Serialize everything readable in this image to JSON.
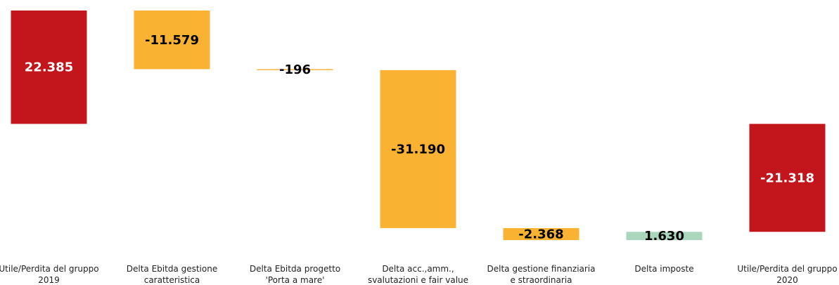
{
  "chart_data": {
    "type": "waterfall",
    "categories": [
      "Utile/Perdita del gruppo 2019",
      "Delta Ebitda gestione caratteristica",
      "Delta Ebitda progetto 'Porta a mare'",
      "Delta acc.,amm., svalutazioni e fair value",
      "Delta gestione finanziaria e straordinaria",
      "Delta imposte",
      "Utile/Perdita del gruppo 2020"
    ],
    "values": [
      22385,
      -11579,
      -196,
      -31190,
      -2368,
      1630,
      -21318
    ],
    "value_labels": [
      "22.385",
      "-11.579",
      "-196",
      "-31.190",
      "-2.368",
      "1.630",
      "-21.318"
    ],
    "measure": [
      "absolute",
      "relative",
      "relative",
      "relative",
      "relative",
      "relative",
      "total"
    ],
    "colors": [
      "#c3161c",
      "#f9b232",
      "#f9b232",
      "#f9b232",
      "#f9b232",
      "#a9d6bd",
      "#c3161c"
    ],
    "label_colors": [
      "#ffffff",
      "#000000",
      "#000000",
      "#000000",
      "#000000",
      "#000000",
      "#ffffff"
    ]
  }
}
